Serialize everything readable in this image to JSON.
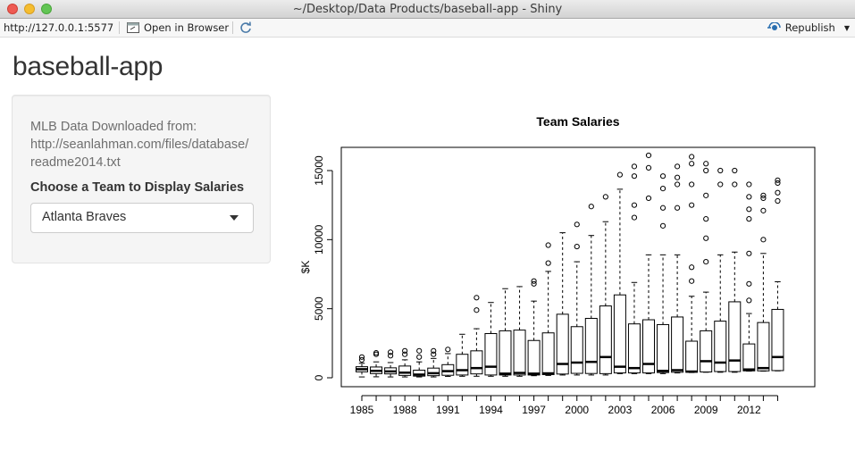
{
  "window": {
    "title": "~/Desktop/Data Products/baseball-app - Shiny"
  },
  "toolbar": {
    "url": "http://127.0.0.1:5577",
    "open_browser": "Open in Browser",
    "republish": "Republish"
  },
  "app": {
    "title": "baseball-app"
  },
  "sidebar": {
    "source_text": "MLB Data Downloaded from: http://seanlahman.com/files/database/ readme2014.txt",
    "choose_label": "Choose a Team to Display Salaries",
    "selected_team": "Atlanta Braves"
  },
  "chart_data": {
    "type": "boxplot",
    "title": "Team Salaries",
    "ylabel": "$K",
    "xlabel": "",
    "ylim": [
      0,
      16500
    ],
    "yticks": [
      0,
      5000,
      10000,
      15000
    ],
    "xtick_labels": [
      "1985",
      "1988",
      "1991",
      "1994",
      "1997",
      "2000",
      "2003",
      "2006",
      "2009",
      "2012"
    ],
    "grid": false,
    "boxes": [
      {
        "year": 1985,
        "min": 60,
        "q1": 430,
        "median": 620,
        "q3": 800,
        "max": 1050,
        "outliers": [
          1300,
          1500
        ]
      },
      {
        "year": 1986,
        "min": 70,
        "q1": 300,
        "median": 500,
        "q3": 780,
        "max": 1150,
        "outliers": [
          1700,
          1800
        ]
      },
      {
        "year": 1987,
        "min": 60,
        "q1": 280,
        "median": 460,
        "q3": 720,
        "max": 1100,
        "outliers": [
          1600,
          1850
        ]
      },
      {
        "year": 1988,
        "min": 60,
        "q1": 170,
        "median": 370,
        "q3": 850,
        "max": 1300,
        "outliers": [
          1700,
          1950
        ]
      },
      {
        "year": 1989,
        "min": 60,
        "q1": 120,
        "median": 230,
        "q3": 550,
        "max": 1150,
        "outliers": [
          1500,
          1950
        ]
      },
      {
        "year": 1990,
        "min": 60,
        "q1": 150,
        "median": 330,
        "q3": 700,
        "max": 1400,
        "outliers": [
          1700,
          1950
        ]
      },
      {
        "year": 1991,
        "min": 100,
        "q1": 180,
        "median": 480,
        "q3": 950,
        "max": 1750,
        "outliers": [
          2050
        ]
      },
      {
        "year": 1992,
        "min": 110,
        "q1": 200,
        "median": 550,
        "q3": 1700,
        "max": 3150,
        "outliers": []
      },
      {
        "year": 1993,
        "min": 110,
        "q1": 280,
        "median": 700,
        "q3": 1950,
        "max": 3550,
        "outliers": [
          4900,
          5800
        ]
      },
      {
        "year": 1994,
        "min": 110,
        "q1": 200,
        "median": 800,
        "q3": 3200,
        "max": 5450,
        "outliers": []
      },
      {
        "year": 1995,
        "min": 110,
        "q1": 200,
        "median": 300,
        "q3": 3400,
        "max": 6450,
        "outliers": []
      },
      {
        "year": 1996,
        "min": 110,
        "q1": 200,
        "median": 350,
        "q3": 3450,
        "max": 6600,
        "outliers": []
      },
      {
        "year": 1997,
        "min": 150,
        "q1": 200,
        "median": 300,
        "q3": 2700,
        "max": 5550,
        "outliers": [
          6800,
          7000
        ]
      },
      {
        "year": 1998,
        "min": 170,
        "q1": 230,
        "median": 320,
        "q3": 3250,
        "max": 7700,
        "outliers": [
          8300,
          9600
        ]
      },
      {
        "year": 1999,
        "min": 200,
        "q1": 270,
        "median": 1000,
        "q3": 4600,
        "max": 10500,
        "outliers": []
      },
      {
        "year": 2000,
        "min": 200,
        "q1": 320,
        "median": 1100,
        "q3": 3700,
        "max": 8400,
        "outliers": [
          9500,
          11100
        ]
      },
      {
        "year": 2001,
        "min": 200,
        "q1": 310,
        "median": 1150,
        "q3": 4300,
        "max": 10300,
        "outliers": [
          12400
        ]
      },
      {
        "year": 2002,
        "min": 200,
        "q1": 300,
        "median": 1500,
        "q3": 5200,
        "max": 11300,
        "outliers": [
          13100
        ]
      },
      {
        "year": 2003,
        "min": 300,
        "q1": 350,
        "median": 800,
        "q3": 6000,
        "max": 13650,
        "outliers": [
          14700
        ]
      },
      {
        "year": 2004,
        "min": 300,
        "q1": 350,
        "median": 700,
        "q3": 3900,
        "max": 6900,
        "outliers": [
          11600,
          12500,
          14600,
          15300
        ]
      },
      {
        "year": 2005,
        "min": 300,
        "q1": 350,
        "median": 1000,
        "q3": 4200,
        "max": 8900,
        "outliers": [
          13000,
          15200,
          16100
        ]
      },
      {
        "year": 2006,
        "min": 300,
        "q1": 380,
        "median": 500,
        "q3": 3850,
        "max": 8900,
        "outliers": [
          11000,
          12300,
          13700,
          14600
        ]
      },
      {
        "year": 2007,
        "min": 350,
        "q1": 400,
        "median": 550,
        "q3": 4400,
        "max": 8900,
        "outliers": [
          12300,
          14000,
          14500,
          15300
        ]
      },
      {
        "year": 2008,
        "min": 380,
        "q1": 400,
        "median": 450,
        "q3": 2650,
        "max": 5900,
        "outliers": [
          7000,
          8000,
          12500,
          14000,
          15500,
          16000
        ]
      },
      {
        "year": 2009,
        "min": 400,
        "q1": 420,
        "median": 1200,
        "q3": 3400,
        "max": 6200,
        "outliers": [
          8400,
          10100,
          11500,
          13200,
          15000,
          15500
        ]
      },
      {
        "year": 2010,
        "min": 400,
        "q1": 450,
        "median": 1100,
        "q3": 4100,
        "max": 8900,
        "outliers": [
          14000,
          15000
        ]
      },
      {
        "year": 2011,
        "min": 400,
        "q1": 450,
        "median": 1250,
        "q3": 5500,
        "max": 9100,
        "outliers": [
          14000,
          15000
        ]
      },
      {
        "year": 2012,
        "min": 480,
        "q1": 500,
        "median": 600,
        "q3": 2450,
        "max": 4650,
        "outliers": [
          5600,
          6800,
          9000,
          11500,
          12200,
          13100,
          14000
        ]
      },
      {
        "year": 2013,
        "min": 480,
        "q1": 500,
        "median": 700,
        "q3": 4000,
        "max": 9000,
        "outliers": [
          10000,
          12100,
          13000,
          13200
        ]
      },
      {
        "year": 2014,
        "min": 500,
        "q1": 520,
        "median": 1500,
        "q3": 4950,
        "max": 6950,
        "outliers": [
          12800,
          13400,
          14100,
          14300
        ]
      }
    ]
  }
}
